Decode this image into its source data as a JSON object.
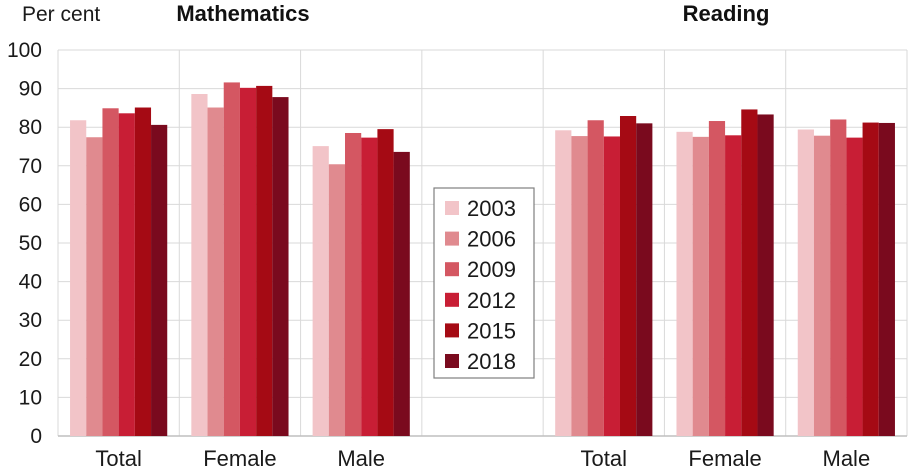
{
  "chart_data": {
    "type": "bar",
    "ylabel": "Per cent",
    "ylim": [
      0,
      100
    ],
    "yticks": [
      0,
      10,
      20,
      30,
      40,
      50,
      60,
      70,
      80,
      90,
      100
    ],
    "grid": true,
    "legend_position": "center",
    "panels": [
      {
        "title": "Mathematics",
        "categories": [
          "Total",
          "Female",
          "Male"
        ],
        "series": [
          {
            "name": "2003",
            "color": "#f2c4c8",
            "values": [
              81.8,
              88.6,
              75.1
            ]
          },
          {
            "name": "2006",
            "color": "#e08a8f",
            "values": [
              77.4,
              85.1,
              70.4
            ]
          },
          {
            "name": "2009",
            "color": "#d45762",
            "values": [
              84.9,
              91.6,
              78.5
            ]
          },
          {
            "name": "2012",
            "color": "#c81e35",
            "values": [
              83.6,
              90.2,
              77.3
            ]
          },
          {
            "name": "2015",
            "color": "#a50a14",
            "values": [
              85.1,
              90.7,
              79.5
            ]
          },
          {
            "name": "2018",
            "color": "#7a0a1e",
            "values": [
              80.6,
              87.8,
              73.6
            ]
          }
        ]
      },
      {
        "title": "Reading",
        "categories": [
          "Total",
          "Female",
          "Male"
        ],
        "series": [
          {
            "name": "2003",
            "color": "#f2c4c8",
            "values": [
              79.2,
              78.8,
              79.4
            ]
          },
          {
            "name": "2006",
            "color": "#e08a8f",
            "values": [
              77.7,
              77.5,
              77.8
            ]
          },
          {
            "name": "2009",
            "color": "#d45762",
            "values": [
              81.8,
              81.6,
              82.0
            ]
          },
          {
            "name": "2012",
            "color": "#c81e35",
            "values": [
              77.6,
              77.9,
              77.3
            ]
          },
          {
            "name": "2015",
            "color": "#a50a14",
            "values": [
              82.9,
              84.6,
              81.2
            ]
          },
          {
            "name": "2018",
            "color": "#7a0a1e",
            "values": [
              81.0,
              83.3,
              81.1
            ]
          }
        ]
      }
    ]
  },
  "legend": {
    "items": [
      {
        "label": "2003",
        "color": "#f2c4c8"
      },
      {
        "label": "2006",
        "color": "#e08a8f"
      },
      {
        "label": "2009",
        "color": "#d45762"
      },
      {
        "label": "2012",
        "color": "#c81e35"
      },
      {
        "label": "2015",
        "color": "#a50a14"
      },
      {
        "label": "2018",
        "color": "#7a0a1e"
      }
    ]
  },
  "colors": {
    "grid": "#d9d9d9",
    "axis": "#bfbfbf",
    "legend_border": "#7f7f7f"
  }
}
